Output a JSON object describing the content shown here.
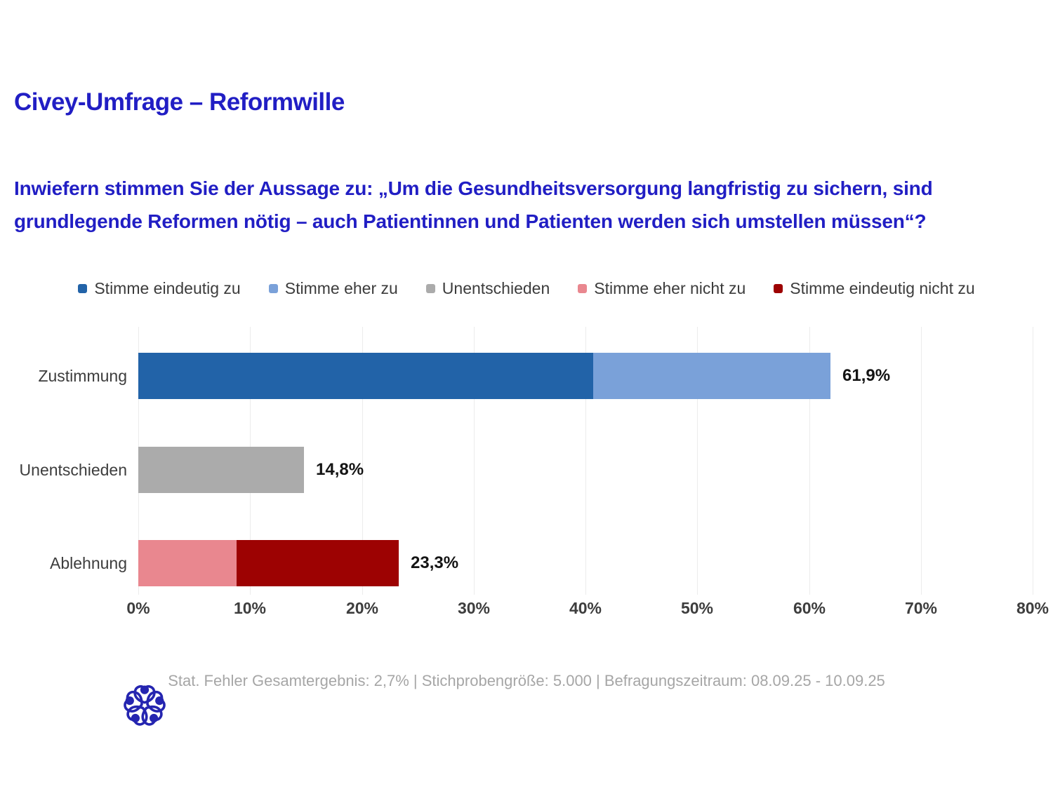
{
  "header": {
    "title": "Civey-Umfrage – Reformwille",
    "title_color": "#211ec4"
  },
  "question": "Inwiefern stimmen Sie der Aussage zu: „Um die Gesundheitsversorgung langfristig zu sichern, sind grundlegende Reformen nötig – auch Patientinnen und Patienten werden sich umstellen müssen“?",
  "chart_data": {
    "type": "bar",
    "orientation": "horizontal",
    "stacked": true,
    "grid": true,
    "legend_position": "top",
    "categories": [
      "Zustimmung",
      "Unentschieden",
      "Ablehnung"
    ],
    "legend": [
      {
        "label": "Stimme eindeutig zu",
        "color": "#2263a8"
      },
      {
        "label": "Stimme eher zu",
        "color": "#7aa1d9"
      },
      {
        "label": "Unentschieden",
        "color": "#ababab"
      },
      {
        "label": "Stimme eher nicht zu",
        "color": "#e9878f"
      },
      {
        "label": "Stimme eindeutig nicht zu",
        "color": "#9d0202"
      }
    ],
    "bars": [
      {
        "category": "Zustimmung",
        "total": 61.9,
        "total_label": "61,9%",
        "segments": [
          {
            "name": "Stimme eindeutig zu",
            "value": 40.7,
            "color": "#2263a8"
          },
          {
            "name": "Stimme eher zu",
            "value": 21.2,
            "color": "#7aa1d9"
          }
        ]
      },
      {
        "category": "Unentschieden",
        "total": 14.8,
        "total_label": "14,8%",
        "segments": [
          {
            "name": "Unentschieden",
            "value": 14.8,
            "color": "#ababab"
          }
        ]
      },
      {
        "category": "Ablehnung",
        "total": 23.3,
        "total_label": "23,3%",
        "segments": [
          {
            "name": "Stimme eher nicht zu",
            "value": 8.8,
            "color": "#e9878f"
          },
          {
            "name": "Stimme eindeutig nicht zu",
            "value": 14.5,
            "color": "#9d0202"
          }
        ]
      }
    ],
    "x_axis": {
      "min": 0,
      "max": 80,
      "ticks": [
        "0%",
        "10%",
        "20%",
        "30%",
        "40%",
        "50%",
        "60%",
        "70%",
        "80%"
      ]
    }
  },
  "footer": {
    "text": "Stat. Fehler Gesamtergebnis: 2,7% | Stichprobengröße: 5.000 | Befragungszeitraum: 08.09.25 - 10.09.25",
    "logo": "civey-logo",
    "logo_color": "#2525b0"
  }
}
